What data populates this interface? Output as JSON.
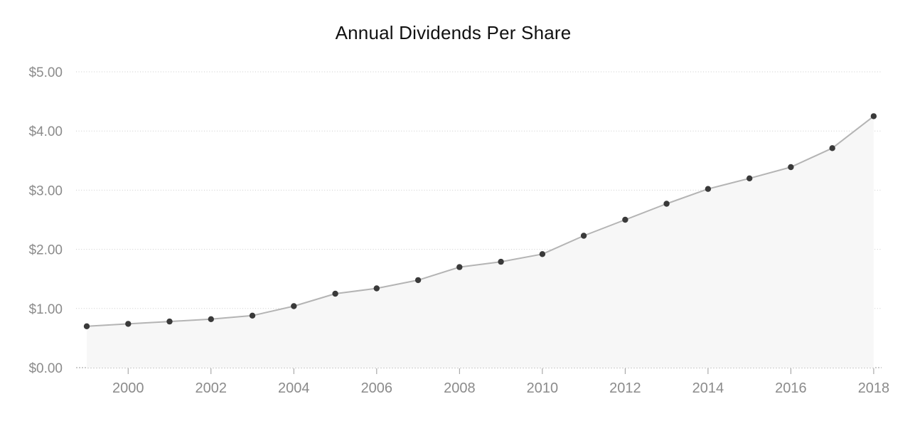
{
  "page": {
    "background": "#ffffff"
  },
  "chart_data": {
    "type": "area",
    "title": "Annual Dividends Per Share",
    "xlabel": "",
    "ylabel": "",
    "x": [
      1999,
      2000,
      2001,
      2002,
      2003,
      2004,
      2005,
      2006,
      2007,
      2008,
      2009,
      2010,
      2011,
      2012,
      2013,
      2014,
      2015,
      2016,
      2017,
      2018
    ],
    "series": [
      {
        "name": "Annual Dividends Per Share",
        "values": [
          0.7,
          0.74,
          0.78,
          0.82,
          0.88,
          1.04,
          1.25,
          1.34,
          1.48,
          1.7,
          1.79,
          1.92,
          2.23,
          2.5,
          2.77,
          3.02,
          3.2,
          3.39,
          3.71,
          4.25
        ]
      }
    ],
    "xlim": [
      1999,
      2018
    ],
    "ylim": [
      0,
      5
    ],
    "x_ticks": [
      2000,
      2002,
      2004,
      2006,
      2008,
      2010,
      2012,
      2014,
      2016,
      2018
    ],
    "y_ticks": [
      {
        "value": 0,
        "label": "$0.00"
      },
      {
        "value": 1,
        "label": "$1.00"
      },
      {
        "value": 2,
        "label": "$2.00"
      },
      {
        "value": 3,
        "label": "$3.00"
      },
      {
        "value": 4,
        "label": "$4.00"
      },
      {
        "value": 5,
        "label": "$5.00"
      }
    ],
    "grid": "horizontal-dotted",
    "legend": "none",
    "marker": "circle",
    "colors": {
      "background": "#ffffff",
      "title": "#111111",
      "area_fill": "#f7f7f7",
      "line": "#b4b4b4",
      "point": "#3a3a3a",
      "gridline": "#cbcbcb",
      "axis": "#999999",
      "tick_label": "#8b8b8b"
    }
  }
}
